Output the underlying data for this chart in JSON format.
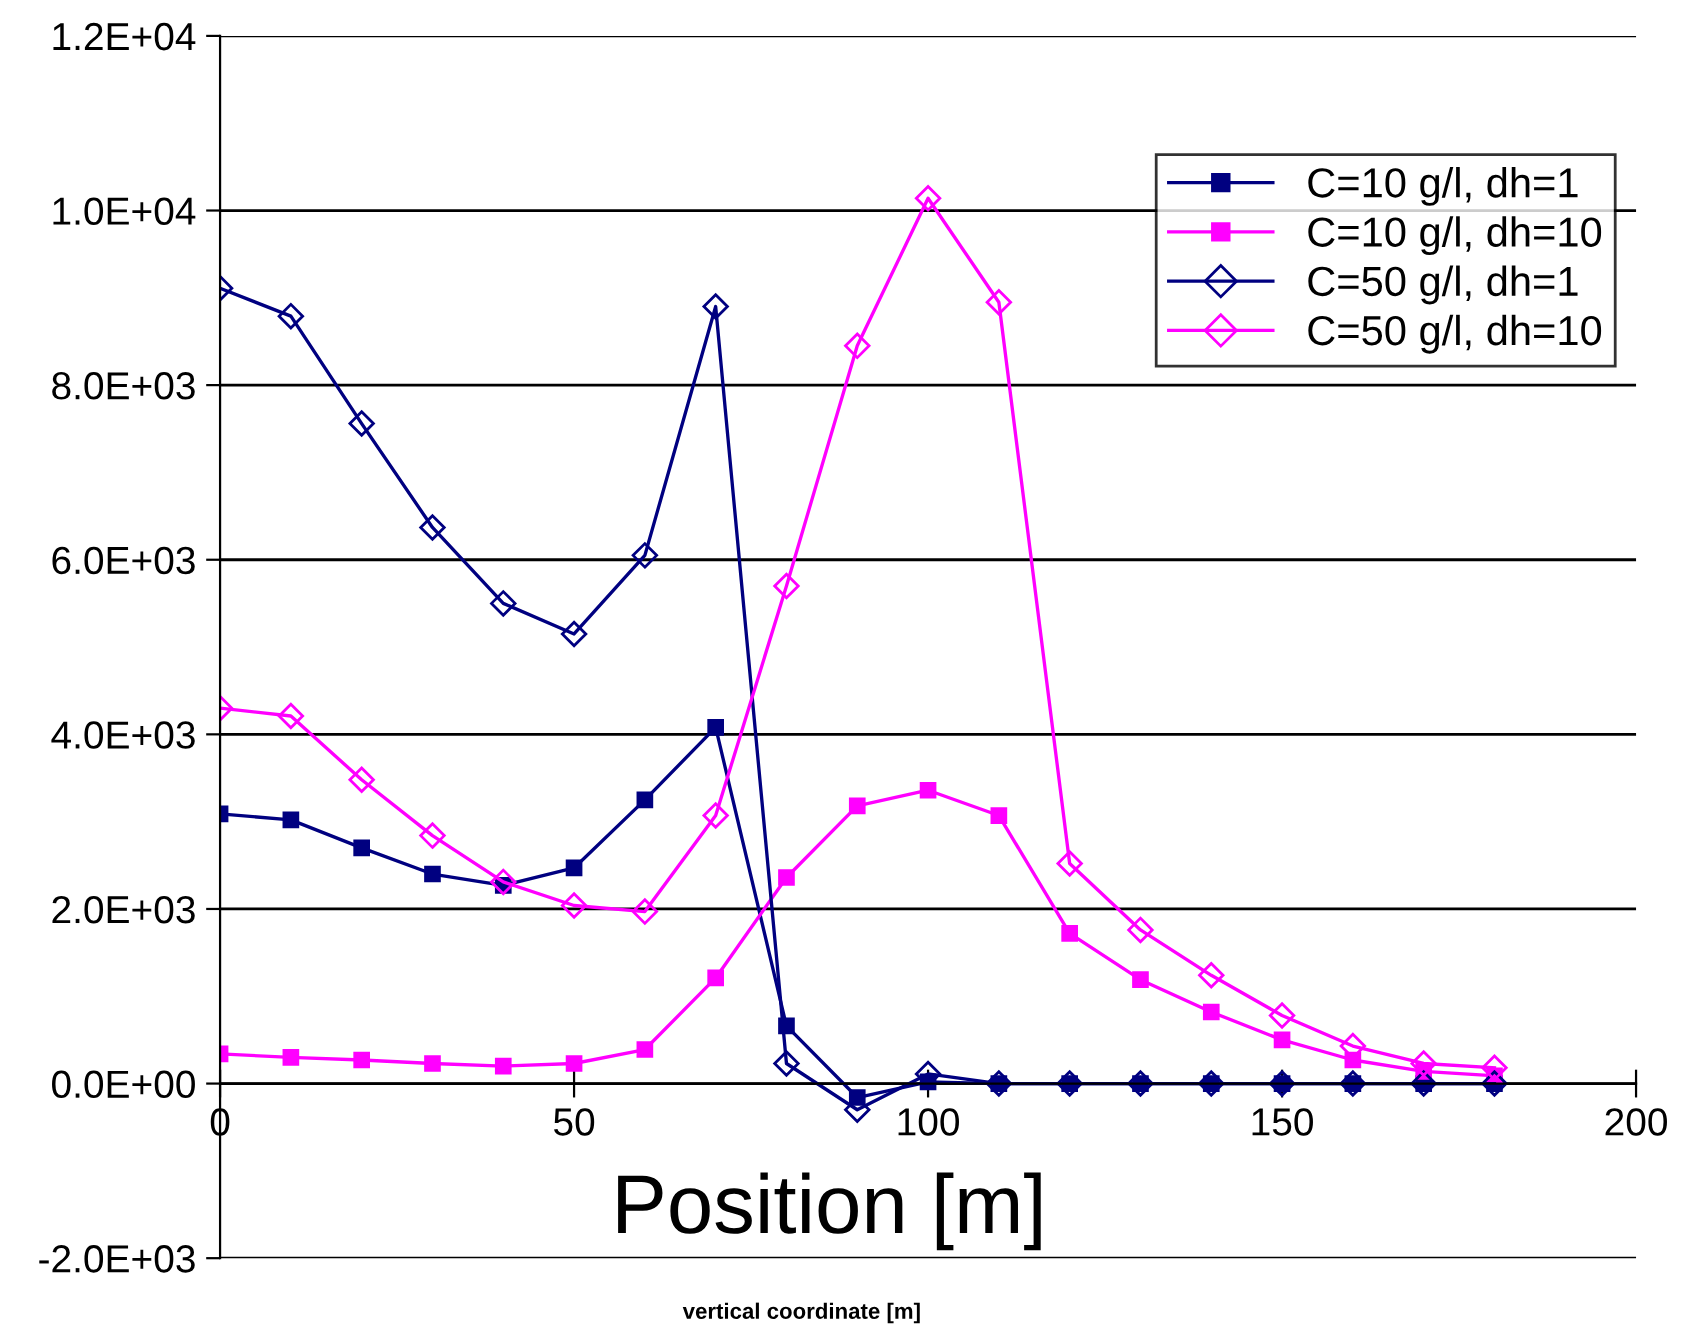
{
  "chart_data": {
    "type": "line",
    "xlabel": "Position [m]",
    "annotations": [
      "vertical coordinate [m]"
    ],
    "x": [
      0,
      10,
      20,
      30,
      40,
      50,
      60,
      70,
      80,
      90,
      100,
      110,
      120,
      130,
      140,
      150,
      160,
      170,
      180
    ],
    "series": [
      {
        "name": "C=10 g/l, dh=1",
        "color": "#000080",
        "marker": "square",
        "values": [
          3090,
          3020,
          2700,
          2400,
          2270,
          2470,
          3250,
          4080,
          660,
          -160,
          20,
          0,
          0,
          0,
          0,
          0,
          0,
          0,
          0
        ]
      },
      {
        "name": "C=10 g/l, dh=10",
        "color": "#ff00ff",
        "marker": "square",
        "values": [
          340,
          300,
          270,
          230,
          200,
          230,
          390,
          1210,
          2360,
          3180,
          3360,
          3070,
          1720,
          1190,
          820,
          500,
          270,
          140,
          90
        ]
      },
      {
        "name": "C=50 g/l, dh=1",
        "color": "#000080",
        "marker": "diamond",
        "values": [
          9110,
          8790,
          7560,
          6370,
          5500,
          5150,
          6050,
          8900,
          230,
          -300,
          110,
          0,
          0,
          0,
          0,
          0,
          0,
          0,
          0
        ]
      },
      {
        "name": "C=50 g/l, dh=10",
        "color": "#ff00ff",
        "marker": "diamond",
        "values": [
          4300,
          4210,
          3480,
          2840,
          2310,
          2040,
          1970,
          3070,
          5700,
          8450,
          10140,
          8950,
          2520,
          1760,
          1240,
          780,
          430,
          230,
          180
        ]
      }
    ],
    "xlim": [
      0,
      200
    ],
    "xticks": [
      0,
      50,
      100,
      150,
      200
    ],
    "ylim": [
      -2000,
      12000
    ],
    "yticks": [
      {
        "value": -2000,
        "label": "-2.0E+03"
      },
      {
        "value": 0,
        "label": "0.0E+00"
      },
      {
        "value": 2000,
        "label": "2.0E+03"
      },
      {
        "value": 4000,
        "label": "4.0E+03"
      },
      {
        "value": 6000,
        "label": "6.0E+03"
      },
      {
        "value": 8000,
        "label": "8.0E+03"
      },
      {
        "value": 10000,
        "label": "1.0E+04"
      },
      {
        "value": 12000,
        "label": "1.2E+04"
      }
    ],
    "grid": "y",
    "legend": "top right"
  }
}
